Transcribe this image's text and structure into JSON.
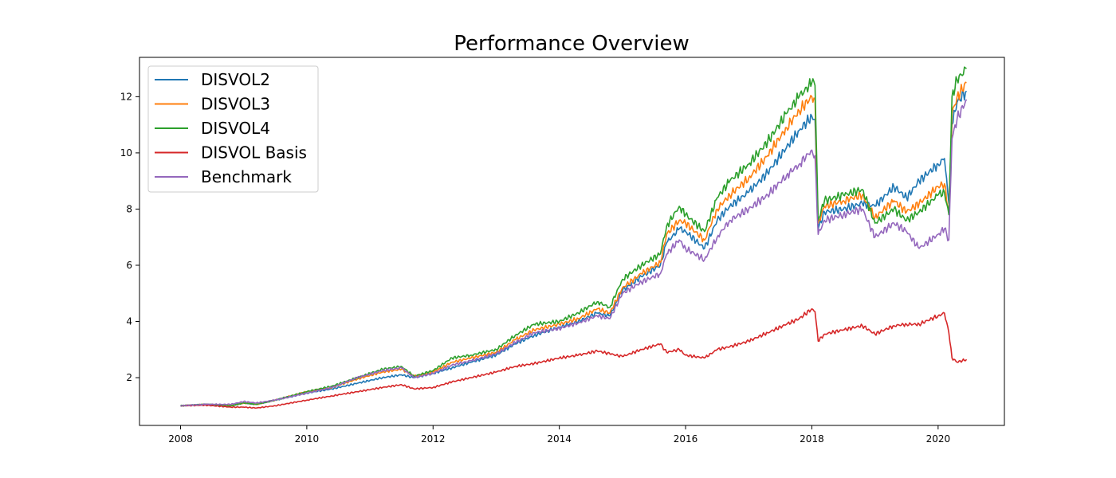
{
  "chart_data": {
    "type": "line",
    "title": "Performance Overview",
    "xlabel": "",
    "ylabel": "",
    "xlim": [
      2007.35,
      2021.05
    ],
    "ylim": [
      0.3,
      13.4
    ],
    "x_ticks": [
      2008,
      2010,
      2012,
      2014,
      2016,
      2018,
      2020
    ],
    "x_tick_labels": [
      "2008",
      "2010",
      "2012",
      "2014",
      "2016",
      "2018",
      "2020"
    ],
    "y_ticks": [
      2,
      4,
      6,
      8,
      10,
      12
    ],
    "y_tick_labels": [
      "2",
      "4",
      "6",
      "8",
      "10",
      "12"
    ],
    "grid": false,
    "legend_position": "top-left",
    "series": [
      {
        "name": "DISVOL2",
        "color": "#1f77b4",
        "x": [
          2008.0,
          2008.4,
          2008.8,
          2009.0,
          2009.2,
          2009.5,
          2010.0,
          2010.4,
          2010.8,
          2011.2,
          2011.5,
          2011.7,
          2012.0,
          2012.3,
          2012.6,
          2013.0,
          2013.3,
          2013.6,
          2014.0,
          2014.3,
          2014.6,
          2014.8,
          2015.0,
          2015.3,
          2015.6,
          2015.7,
          2015.9,
          2016.0,
          2016.3,
          2016.5,
          2016.7,
          2017.0,
          2017.3,
          2017.6,
          2017.8,
          2018.0,
          2018.05,
          2018.1,
          2018.2,
          2018.5,
          2018.8,
          2019.0,
          2019.3,
          2019.5,
          2019.7,
          2020.0,
          2020.1,
          2020.17,
          2020.22,
          2020.3,
          2020.45
        ],
        "values": [
          1.0,
          1.05,
          1.0,
          1.1,
          1.05,
          1.2,
          1.45,
          1.6,
          1.8,
          2.0,
          2.1,
          2.0,
          2.15,
          2.35,
          2.55,
          2.8,
          3.2,
          3.5,
          3.8,
          4.0,
          4.3,
          4.2,
          5.1,
          5.6,
          6.0,
          6.8,
          7.3,
          7.2,
          6.6,
          7.6,
          8.1,
          8.6,
          9.3,
          10.2,
          10.8,
          11.3,
          11.2,
          7.3,
          7.9,
          8.0,
          8.2,
          8.1,
          8.8,
          8.4,
          9.0,
          9.6,
          9.8,
          8.2,
          11.0,
          11.8,
          12.2
        ]
      },
      {
        "name": "DISVOL3",
        "color": "#ff7f0e",
        "x": [
          2008.0,
          2008.4,
          2008.8,
          2009.0,
          2009.2,
          2009.5,
          2010.0,
          2010.4,
          2010.8,
          2011.2,
          2011.5,
          2011.7,
          2012.0,
          2012.3,
          2012.6,
          2013.0,
          2013.3,
          2013.6,
          2014.0,
          2014.3,
          2014.6,
          2014.8,
          2015.0,
          2015.3,
          2015.6,
          2015.7,
          2015.9,
          2016.0,
          2016.3,
          2016.5,
          2016.7,
          2017.0,
          2017.3,
          2017.6,
          2017.8,
          2018.0,
          2018.05,
          2018.1,
          2018.2,
          2018.5,
          2018.8,
          2019.0,
          2019.3,
          2019.5,
          2019.7,
          2020.0,
          2020.1,
          2020.17,
          2020.22,
          2020.3,
          2020.45
        ],
        "values": [
          1.0,
          1.05,
          1.0,
          1.1,
          1.05,
          1.2,
          1.5,
          1.65,
          1.95,
          2.2,
          2.3,
          2.05,
          2.2,
          2.55,
          2.7,
          2.9,
          3.35,
          3.7,
          3.9,
          4.1,
          4.45,
          4.3,
          5.2,
          5.7,
          6.1,
          7.1,
          7.6,
          7.5,
          6.9,
          8.0,
          8.5,
          9.1,
          9.9,
          10.9,
          11.5,
          12.0,
          11.9,
          7.5,
          8.1,
          8.3,
          8.5,
          7.7,
          8.3,
          7.9,
          8.2,
          8.8,
          8.9,
          7.9,
          11.4,
          12.0,
          12.5
        ]
      },
      {
        "name": "DISVOL4",
        "color": "#2ca02c",
        "x": [
          2008.0,
          2008.4,
          2008.8,
          2009.0,
          2009.2,
          2009.5,
          2010.0,
          2010.4,
          2010.8,
          2011.2,
          2011.5,
          2011.7,
          2012.0,
          2012.3,
          2012.6,
          2013.0,
          2013.3,
          2013.6,
          2014.0,
          2014.3,
          2014.6,
          2014.8,
          2015.0,
          2015.3,
          2015.6,
          2015.7,
          2015.9,
          2016.0,
          2016.3,
          2016.5,
          2016.7,
          2017.0,
          2017.3,
          2017.6,
          2017.8,
          2018.0,
          2018.05,
          2018.1,
          2018.2,
          2018.5,
          2018.8,
          2019.0,
          2019.3,
          2019.5,
          2019.7,
          2020.0,
          2020.1,
          2020.17,
          2020.22,
          2020.3,
          2020.45
        ],
        "values": [
          1.0,
          1.05,
          1.0,
          1.1,
          1.05,
          1.2,
          1.5,
          1.7,
          2.0,
          2.3,
          2.4,
          2.05,
          2.25,
          2.7,
          2.8,
          3.0,
          3.5,
          3.9,
          4.0,
          4.3,
          4.7,
          4.5,
          5.5,
          6.0,
          6.4,
          7.4,
          8.1,
          7.8,
          7.2,
          8.4,
          9.0,
          9.6,
          10.4,
          11.4,
          12.0,
          12.5,
          12.4,
          7.6,
          8.3,
          8.5,
          8.7,
          7.5,
          8.0,
          7.6,
          7.9,
          8.5,
          8.6,
          7.8,
          12.0,
          12.6,
          13.0
        ]
      },
      {
        "name": "DISVOL Basis",
        "color": "#d62728",
        "x": [
          2008.0,
          2008.4,
          2008.8,
          2009.0,
          2009.2,
          2009.5,
          2010.0,
          2010.4,
          2010.8,
          2011.2,
          2011.5,
          2011.7,
          2012.0,
          2012.3,
          2012.6,
          2013.0,
          2013.3,
          2013.6,
          2014.0,
          2014.3,
          2014.6,
          2014.8,
          2015.0,
          2015.3,
          2015.6,
          2015.7,
          2015.9,
          2016.0,
          2016.3,
          2016.5,
          2016.7,
          2017.0,
          2017.3,
          2017.6,
          2017.8,
          2018.0,
          2018.05,
          2018.1,
          2018.2,
          2018.5,
          2018.8,
          2019.0,
          2019.3,
          2019.5,
          2019.7,
          2020.0,
          2020.1,
          2020.17,
          2020.22,
          2020.3,
          2020.45
        ],
        "values": [
          1.0,
          1.02,
          0.95,
          0.95,
          0.92,
          1.0,
          1.2,
          1.35,
          1.5,
          1.65,
          1.75,
          1.6,
          1.65,
          1.85,
          2.0,
          2.2,
          2.4,
          2.5,
          2.7,
          2.8,
          2.95,
          2.85,
          2.75,
          3.0,
          3.2,
          2.9,
          3.0,
          2.8,
          2.7,
          3.0,
          3.1,
          3.3,
          3.6,
          3.9,
          4.1,
          4.45,
          4.35,
          3.3,
          3.55,
          3.7,
          3.85,
          3.55,
          3.85,
          3.9,
          3.9,
          4.2,
          4.3,
          3.6,
          2.7,
          2.55,
          2.65
        ]
      },
      {
        "name": "Benchmark",
        "color": "#9467bd",
        "x": [
          2008.0,
          2008.4,
          2008.8,
          2009.0,
          2009.2,
          2009.5,
          2010.0,
          2010.4,
          2010.8,
          2011.2,
          2011.5,
          2011.7,
          2012.0,
          2012.3,
          2012.6,
          2013.0,
          2013.3,
          2013.6,
          2014.0,
          2014.3,
          2014.6,
          2014.8,
          2015.0,
          2015.3,
          2015.6,
          2015.7,
          2015.9,
          2016.0,
          2016.3,
          2016.5,
          2016.7,
          2017.0,
          2017.3,
          2017.6,
          2017.8,
          2018.0,
          2018.05,
          2018.1,
          2018.2,
          2018.5,
          2018.8,
          2019.0,
          2019.3,
          2019.5,
          2019.7,
          2020.0,
          2020.1,
          2020.17,
          2020.22,
          2020.3,
          2020.45
        ],
        "values": [
          1.0,
          1.05,
          1.05,
          1.15,
          1.1,
          1.2,
          1.45,
          1.65,
          2.0,
          2.25,
          2.35,
          2.0,
          2.15,
          2.45,
          2.6,
          2.85,
          3.25,
          3.6,
          3.75,
          3.95,
          4.2,
          4.1,
          5.0,
          5.4,
          5.7,
          6.4,
          6.9,
          6.6,
          6.2,
          7.0,
          7.6,
          8.0,
          8.5,
          9.2,
          9.6,
          10.1,
          9.9,
          7.1,
          7.6,
          7.8,
          8.0,
          7.0,
          7.5,
          7.2,
          6.6,
          7.1,
          7.3,
          6.9,
          10.5,
          11.2,
          11.9
        ]
      }
    ]
  }
}
